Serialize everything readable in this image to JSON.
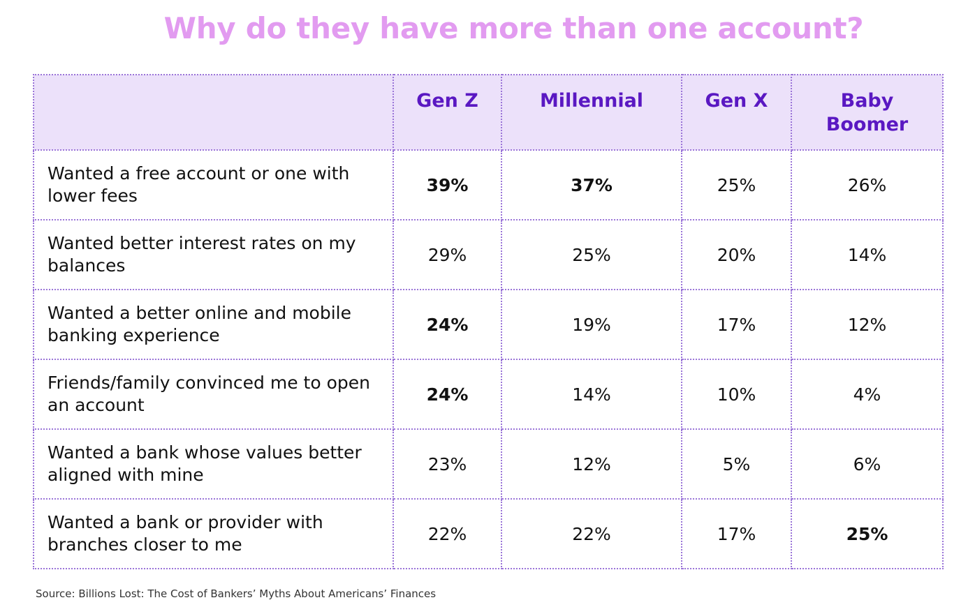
{
  "title": "Why do they have more than one account?",
  "source": "Source: Billions Lost: The Cost of Bankers’ Myths About Americans’ Finances",
  "colors": {
    "title": "#e29bf0",
    "header_bg": "#ece1fa",
    "header_text": "#5a18c2",
    "border": "#9a74d8"
  },
  "chart_data": {
    "type": "table",
    "title": "Why do they have more than one account?",
    "columns": [
      "Gen Z",
      "Millennial",
      "Gen X",
      "Baby Boomer"
    ],
    "rows": [
      {
        "label": "Wanted a free account or one with lower fees",
        "values": [
          "39%",
          "37%",
          "25%",
          "26%"
        ],
        "bold": [
          true,
          true,
          false,
          false
        ]
      },
      {
        "label": "Wanted better interest rates on my balances",
        "values": [
          "29%",
          "25%",
          "20%",
          "14%"
        ],
        "bold": [
          false,
          false,
          false,
          false
        ]
      },
      {
        "label": "Wanted a better online and mobile banking experience",
        "values": [
          "24%",
          "19%",
          "17%",
          "12%"
        ],
        "bold": [
          true,
          false,
          false,
          false
        ]
      },
      {
        "label": "Friends/family convinced me to open an account",
        "values": [
          "24%",
          "14%",
          "10%",
          "4%"
        ],
        "bold": [
          true,
          false,
          false,
          false
        ]
      },
      {
        "label": "Wanted a bank whose values better aligned with mine",
        "values": [
          "23%",
          "12%",
          "5%",
          "6%"
        ],
        "bold": [
          false,
          false,
          false,
          false
        ]
      },
      {
        "label": "Wanted a bank or provider with branches closer to me",
        "values": [
          "22%",
          "22%",
          "17%",
          "25%"
        ],
        "bold": [
          false,
          false,
          false,
          true
        ]
      }
    ]
  }
}
